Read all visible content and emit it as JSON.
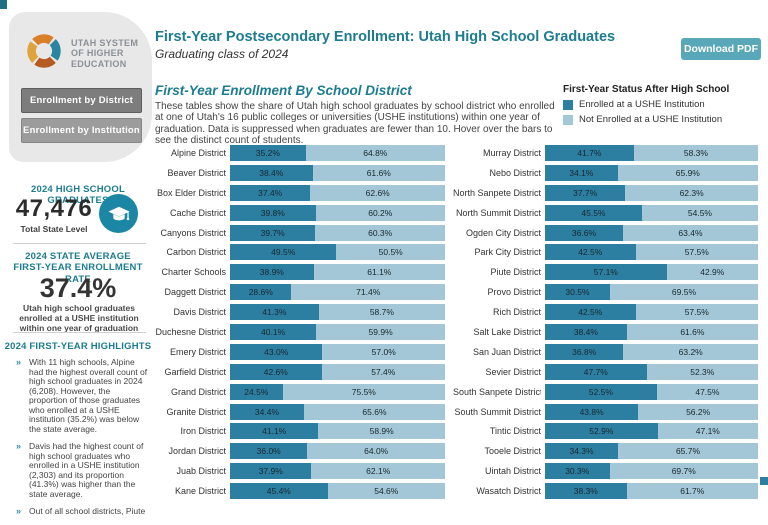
{
  "colors": {
    "enrolled_bar": "#2d7fa2",
    "not_enrolled_bar": "#a3c7d6",
    "heading_teal": "#1d7c8f",
    "download_button": "#58a8ba",
    "stat_circle": "#1c87a4",
    "sidebar_panel": "#e8e8e8"
  },
  "sidebar": {
    "logo_text": "Utah System of Higher Education",
    "nav": [
      {
        "label": "Enrollment by District"
      },
      {
        "label": "Enrollment by Institution"
      }
    ],
    "grad_stat": {
      "heading": "2024 HIGH SCHOOL GRADUATES",
      "value": "47,476",
      "caption": "Total State Level"
    },
    "rate_stat": {
      "heading_line1": "2024 STATE AVERAGE",
      "heading_line2": "FIRST-YEAR ENROLLMENT RATE",
      "value": "37.4%",
      "caption": "Utah high school graduates enrolled at a USHE institution within one year of graduation"
    },
    "highlights": {
      "heading": "2024 FIRST-YEAR HIGHLIGHTS",
      "marker": "»",
      "items": [
        "With 11 high schools, Alpine had the highest overall count of high school graduates in 2024 (6,208). However, the proportion of those graduates who enrolled at a USHE institution (35.2%) was below the state average.",
        "Davis had the highest count of high school graduates who enrolled in a USHE institution (2,303) and its proportion (41.3%) was higher than the state average.",
        "Out of all school districts, Piute"
      ]
    }
  },
  "header": {
    "title": "First-Year Postsecondary Enrollment: Utah High School Graduates",
    "subtitle": "Graduating class of 2024",
    "download_label": "Download PDF"
  },
  "section": {
    "heading": "First-Year Enrollment By School District",
    "description": "These tables show the share of Utah high school graduates by school district who enrolled at one of Utah's 16 public colleges or universities (USHE institutions) within one year of graduation. Data is suppressed when graduates are fewer than 10. Hover over the bars to see the distinct count of students."
  },
  "legend": {
    "title": "First-Year Status After High School",
    "items": [
      {
        "label": "Enrolled at a USHE Institution",
        "color": "#2d7fa2"
      },
      {
        "label": "Not Enrolled at a USHE Institution",
        "color": "#a3c7d6"
      }
    ]
  },
  "chart_data": {
    "type": "bar",
    "orientation": "horizontal",
    "stacked": true,
    "unit": "percent",
    "xlim": [
      0,
      100
    ],
    "series_names": [
      "Enrolled at a USHE Institution",
      "Not Enrolled at a USHE Institution"
    ],
    "columns": [
      {
        "rows": [
          {
            "district": "Alpine District",
            "enrolled": 35.2,
            "not_enrolled": 64.8
          },
          {
            "district": "Beaver District",
            "enrolled": 38.4,
            "not_enrolled": 61.6
          },
          {
            "district": "Box Elder District",
            "enrolled": 37.4,
            "not_enrolled": 62.6
          },
          {
            "district": "Cache District",
            "enrolled": 39.8,
            "not_enrolled": 60.2
          },
          {
            "district": "Canyons District",
            "enrolled": 39.7,
            "not_enrolled": 60.3
          },
          {
            "district": "Carbon District",
            "enrolled": 49.5,
            "not_enrolled": 50.5
          },
          {
            "district": "Charter Schools",
            "enrolled": 38.9,
            "not_enrolled": 61.1
          },
          {
            "district": "Daggett District",
            "enrolled": 28.6,
            "not_enrolled": 71.4
          },
          {
            "district": "Davis District",
            "enrolled": 41.3,
            "not_enrolled": 58.7
          },
          {
            "district": "Duchesne District",
            "enrolled": 40.1,
            "not_enrolled": 59.9
          },
          {
            "district": "Emery District",
            "enrolled": 43.0,
            "not_enrolled": 57.0
          },
          {
            "district": "Garfield District",
            "enrolled": 42.6,
            "not_enrolled": 57.4
          },
          {
            "district": "Grand District",
            "enrolled": 24.5,
            "not_enrolled": 75.5
          },
          {
            "district": "Granite District",
            "enrolled": 34.4,
            "not_enrolled": 65.6
          },
          {
            "district": "Iron District",
            "enrolled": 41.1,
            "not_enrolled": 58.9
          },
          {
            "district": "Jordan District",
            "enrolled": 36.0,
            "not_enrolled": 64.0
          },
          {
            "district": "Juab District",
            "enrolled": 37.9,
            "not_enrolled": 62.1
          },
          {
            "district": "Kane District",
            "enrolled": 45.4,
            "not_enrolled": 54.6
          }
        ]
      },
      {
        "rows": [
          {
            "district": "Murray District",
            "enrolled": 41.7,
            "not_enrolled": 58.3
          },
          {
            "district": "Nebo District",
            "enrolled": 34.1,
            "not_enrolled": 65.9
          },
          {
            "district": "North Sanpete District",
            "enrolled": 37.7,
            "not_enrolled": 62.3
          },
          {
            "district": "North Summit District",
            "enrolled": 45.5,
            "not_enrolled": 54.5
          },
          {
            "district": "Ogden City District",
            "enrolled": 36.6,
            "not_enrolled": 63.4
          },
          {
            "district": "Park City District",
            "enrolled": 42.5,
            "not_enrolled": 57.5
          },
          {
            "district": "Piute District",
            "enrolled": 57.1,
            "not_enrolled": 42.9
          },
          {
            "district": "Provo District",
            "enrolled": 30.5,
            "not_enrolled": 69.5
          },
          {
            "district": "Rich District",
            "enrolled": 42.5,
            "not_enrolled": 57.5
          },
          {
            "district": "Salt Lake District",
            "enrolled": 38.4,
            "not_enrolled": 61.6
          },
          {
            "district": "San Juan District",
            "enrolled": 36.8,
            "not_enrolled": 63.2
          },
          {
            "district": "Sevier District",
            "enrolled": 47.7,
            "not_enrolled": 52.3
          },
          {
            "district": "South Sanpete District",
            "enrolled": 52.5,
            "not_enrolled": 47.5
          },
          {
            "district": "South Summit District",
            "enrolled": 43.8,
            "not_enrolled": 56.2
          },
          {
            "district": "Tintic District",
            "enrolled": 52.9,
            "not_enrolled": 47.1
          },
          {
            "district": "Tooele District",
            "enrolled": 34.3,
            "not_enrolled": 65.7
          },
          {
            "district": "Uintah District",
            "enrolled": 30.3,
            "not_enrolled": 69.7
          },
          {
            "district": "Wasatch District",
            "enrolled": 38.3,
            "not_enrolled": 61.7
          }
        ]
      }
    ]
  }
}
